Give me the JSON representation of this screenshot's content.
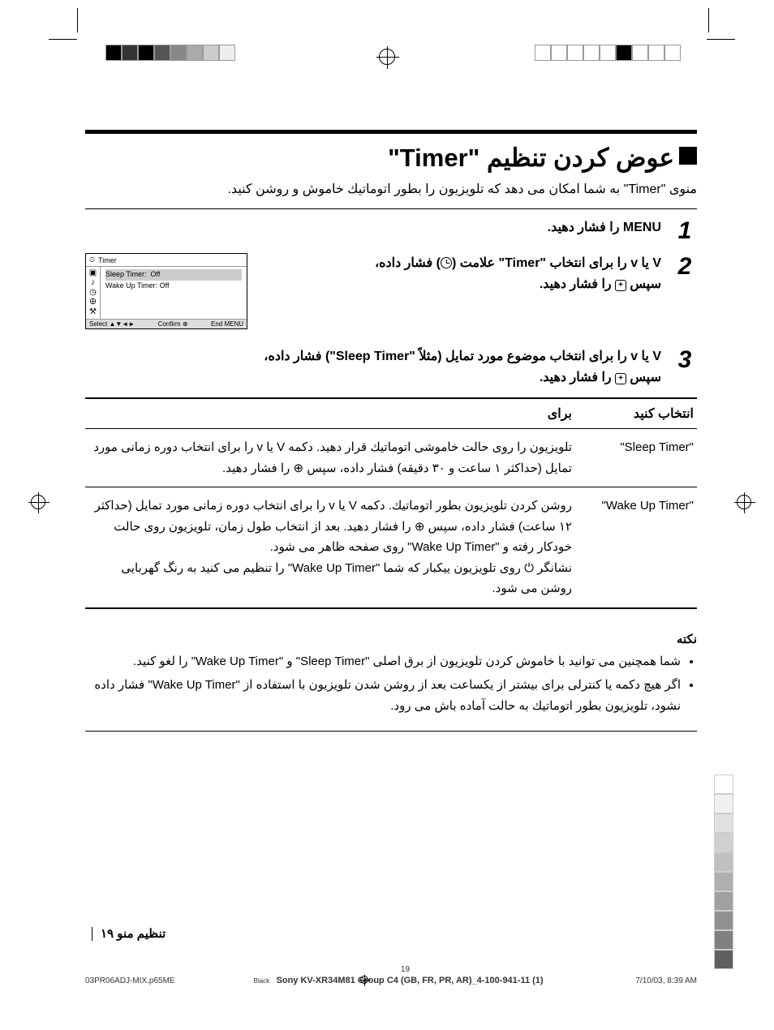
{
  "printmarks": {
    "left_shades": [
      "#000000",
      "#333333",
      "#000000",
      "#555555",
      "#888888",
      "#aaaaaa",
      "#cccccc",
      "#eeeeee"
    ],
    "right_boxes": [
      "#ffffff",
      "#ffffff",
      "#ffffff",
      "#ffffff",
      "#ffffff",
      "#000000",
      "#ffffff",
      "#ffffff",
      "#ffffff"
    ],
    "side_grad": [
      "#ffffff",
      "#f0f0f0",
      "#e0e0e0",
      "#d0d0d0",
      "#c0c0c0",
      "#b0b0b0",
      "#a0a0a0",
      "#909090",
      "#808080",
      "#606060"
    ]
  },
  "title": "عوض کردن تنظیم \"Timer\"",
  "intro": "منوی \"Timer\" به شما امکان می دهد که تلویزیون را بطور اتوماتیك خاموش و روشن کنید.",
  "step1": {
    "num": "1",
    "text": "MENU را فشار دهید."
  },
  "step2": {
    "num": "2",
    "line1_a": "V یا v را برای انتخاب \"Timer\" علامت (",
    "line1_b": ") فشار داده،",
    "line2": "سپس ",
    "line2_btn": "+",
    "line2_end": " را فشار دهید."
  },
  "osd": {
    "title": "Timer",
    "row1_label": "Sleep Timer:",
    "row1_val": "Off",
    "row2": "Wake Up Timer: Off",
    "footer_select": "Select ▲▼◄►",
    "footer_confirm": "Confirm ⊕",
    "footer_end": "End MENU"
  },
  "step3": {
    "num": "3",
    "line1": "V یا v را برای انتخاب موضوع مورد تمایل (مثلاً \"Sleep Timer\") فشار داده،",
    "line2": "سپس ",
    "line2_btn": "+",
    "line2_end": " را فشار دهید."
  },
  "table": {
    "col1": "انتخاب کنید",
    "col2": "برای",
    "row1_key": "\"Sleep Timer\"",
    "row1_val": "تلویزیون را روی حالت خاموشی اتوماتیك قرار دهید. دکمه V یا v را برای انتخاب دوره زمانی مورد تمایل (حداکثر ۱ ساعت و ۳۰ دقیقه) فشار داده، سپس ⊕ را فشار دهید.",
    "row2_key": "\"Wake Up Timer\"",
    "row2_val_p1": "روشن کردن تلویزیون بطور اتوماتیك. دکمه V یا v را برای انتخاب دوره زمانی مورد تمایل (حداکثر ۱۲ ساعت) فشار داده، سپس ⊕ را فشار دهید. بعد از انتخاب طول زمان، تلویزیون روی حالت خودکار رفته و \"Wake Up Timer\" روی صفحه ظاهر می شود.",
    "row2_val_p2": "نشانگر ⏻ روی تلویزیون ییکبار که شما \"Wake Up Timer\" را تنظیم می کنید به رنگ گهربایی روشن می شود."
  },
  "note": {
    "title": "نکته",
    "item1": "شما همچنین می توانید با خاموش کردن تلویزیون از برق اصلی \"Sleep Timer\" و \"Wake Up Timer\" را لغو کنید.",
    "item2": "اگر هیچ دکمه یا کنترلی برای بیشتر از یکساعت بعد از روشن شدن تلویزیون با استفاده از \"Wake Up Timer\" فشار داده نشود، تلویزیون بطور اتوماتیك به حالت آماده باش می رود."
  },
  "footer": {
    "category": "تنظیم منو",
    "page_fa": "۱۹"
  },
  "meta": {
    "file": "03PR06ADJ-MIX.p65ME",
    "page": "19",
    "date": "7/10/03, 8:39 AM",
    "black": "Black",
    "model": "Sony KV-XR34M81 Group C4 (GB, FR, PR, AR)_4-100-941-11 (1)"
  }
}
